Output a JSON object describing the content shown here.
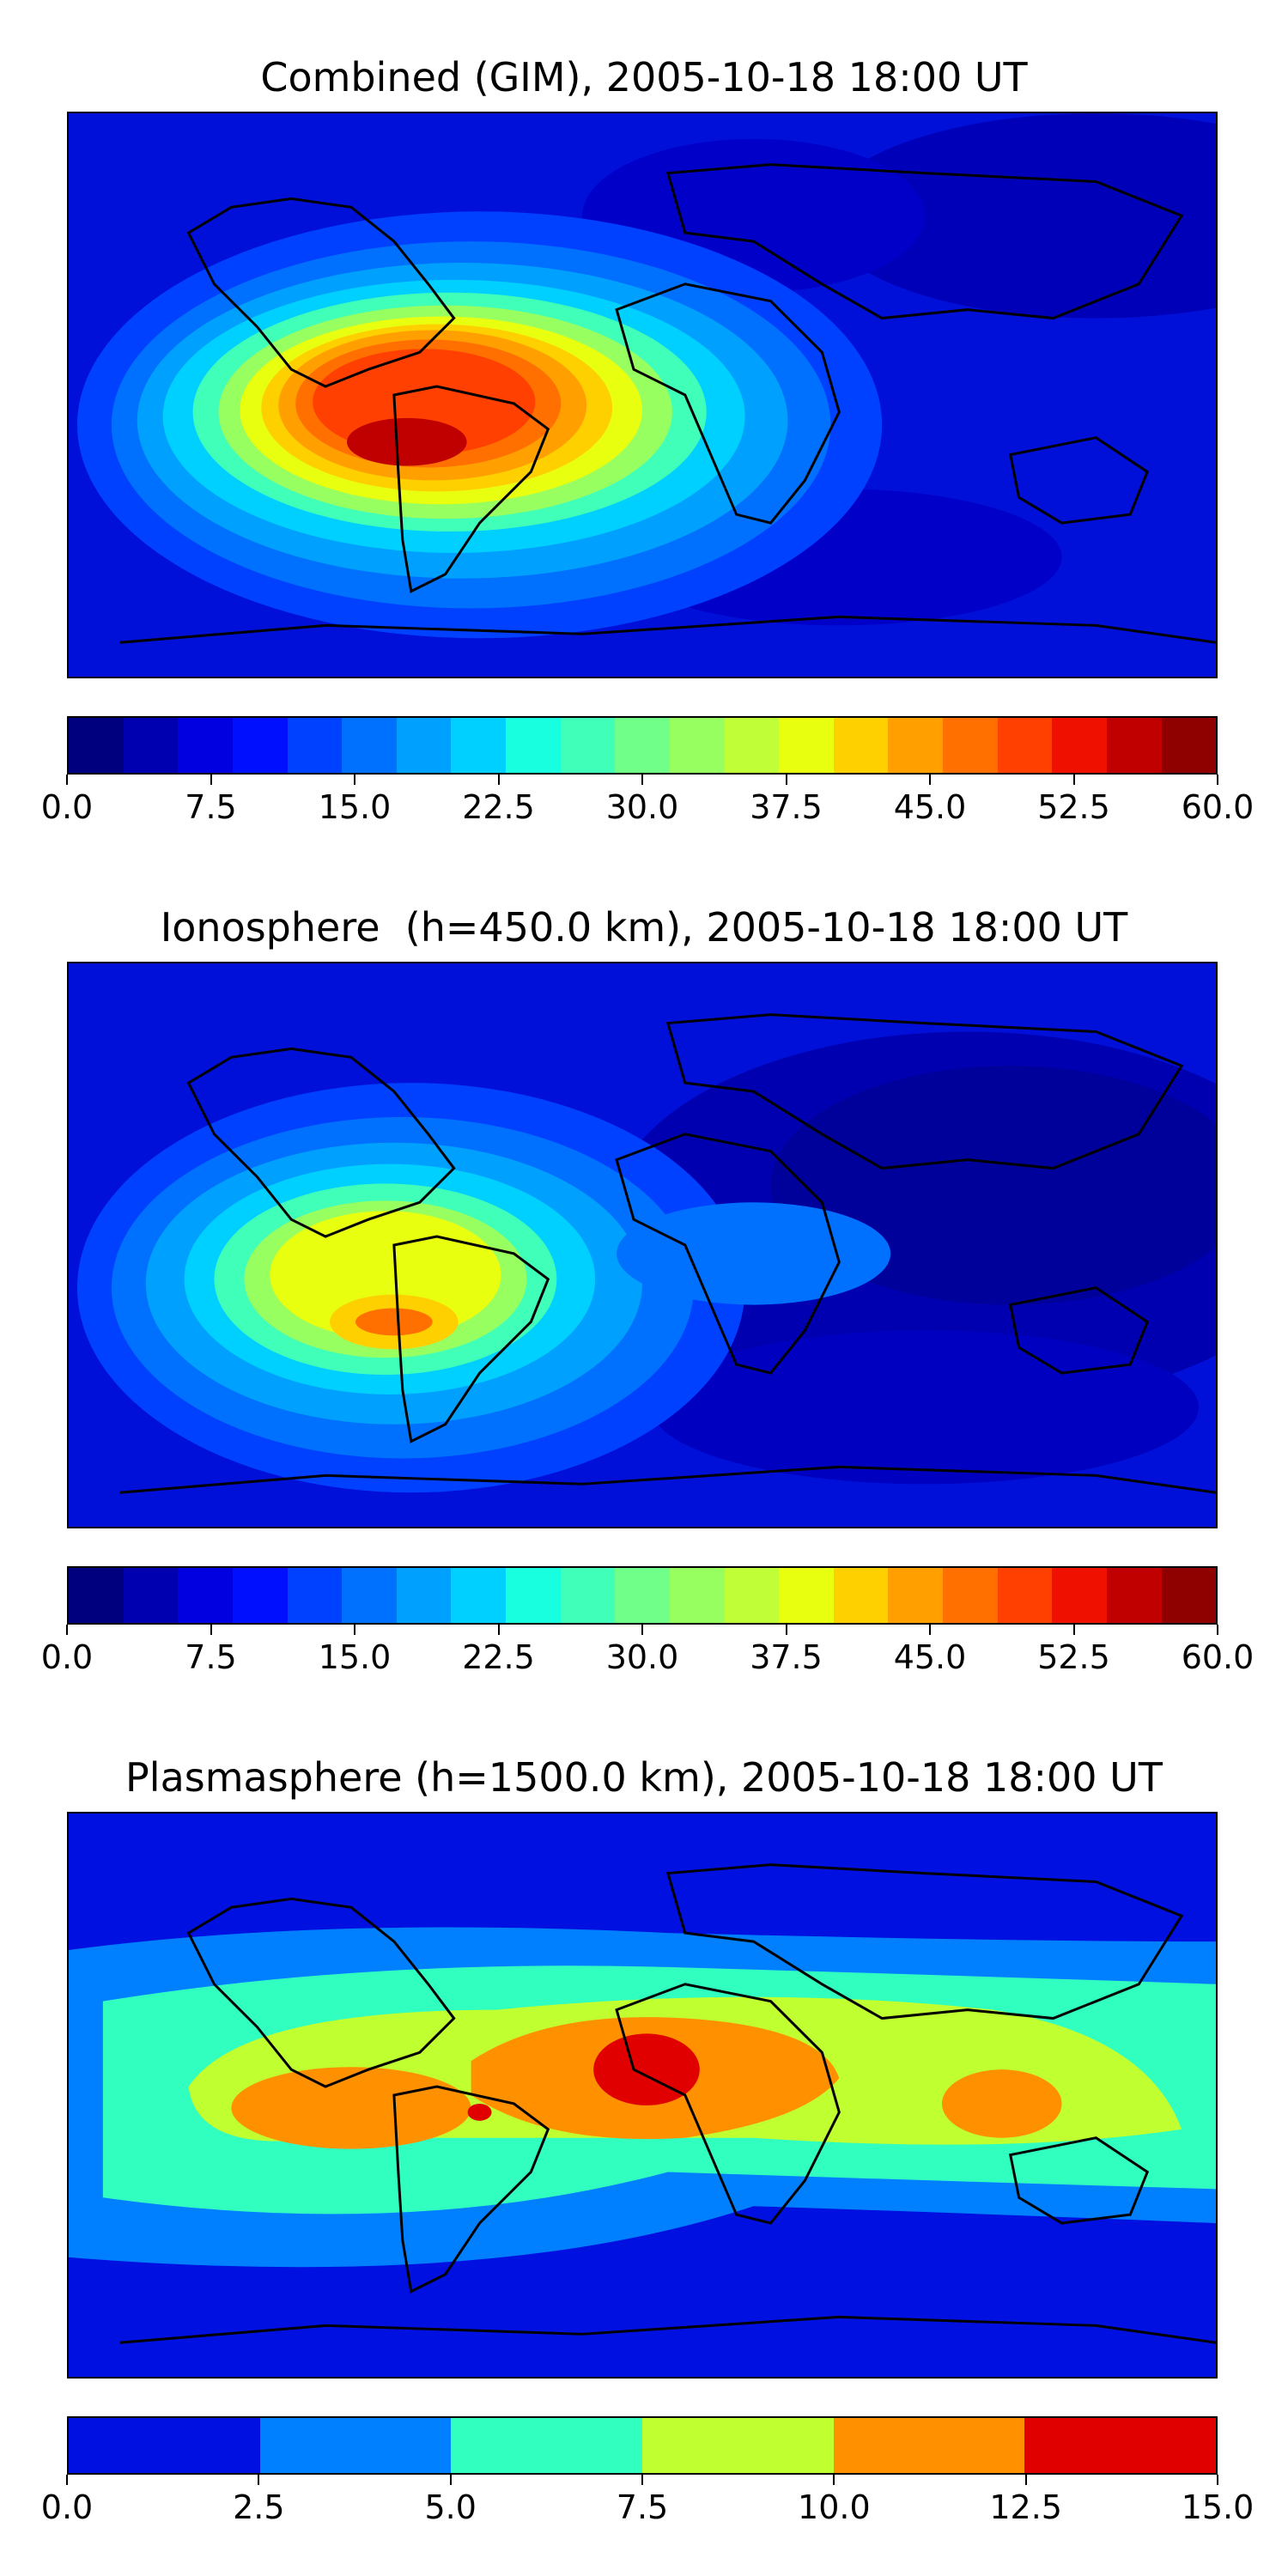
{
  "panels": [
    {
      "title": "Combined (GIM), 2005-10-18 18:00 UT",
      "colorbar": {
        "ticks": [
          "0.0",
          "7.5",
          "15.0",
          "22.5",
          "30.0",
          "37.5",
          "45.0",
          "52.5",
          "60.0"
        ],
        "colors": [
          "#00007f",
          "#0000b0",
          "#0000e0",
          "#0010ff",
          "#0040ff",
          "#0070ff",
          "#00a0ff",
          "#00d0ff",
          "#18ffe0",
          "#40ffb8",
          "#70ff88",
          "#98ff60",
          "#c0ff38",
          "#e8ff10",
          "#ffd000",
          "#ffa000",
          "#ff7000",
          "#ff4000",
          "#f01000",
          "#c00000",
          "#8f0000"
        ]
      }
    },
    {
      "title": "Ionosphere  (h=450.0 km), 2005-10-18 18:00 UT",
      "colorbar": {
        "ticks": [
          "0.0",
          "7.5",
          "15.0",
          "22.5",
          "30.0",
          "37.5",
          "45.0",
          "52.5",
          "60.0"
        ],
        "colors": [
          "#00007f",
          "#0000b0",
          "#0000e0",
          "#0010ff",
          "#0040ff",
          "#0070ff",
          "#00a0ff",
          "#00d0ff",
          "#18ffe0",
          "#40ffb8",
          "#70ff88",
          "#98ff60",
          "#c0ff38",
          "#e8ff10",
          "#ffd000",
          "#ffa000",
          "#ff7000",
          "#ff4000",
          "#f01000",
          "#c00000",
          "#8f0000"
        ]
      }
    },
    {
      "title": "Plasmasphere (h=1500.0 km), 2005-10-18 18:00 UT",
      "colorbar": {
        "ticks": [
          "0.0",
          "2.5",
          "5.0",
          "7.5",
          "10.0",
          "12.5",
          "15.0"
        ],
        "colors": [
          "#0010e0",
          "#0080ff",
          "#30ffc0",
          "#c0ff30",
          "#ff9000",
          "#e00000"
        ]
      }
    }
  ]
}
